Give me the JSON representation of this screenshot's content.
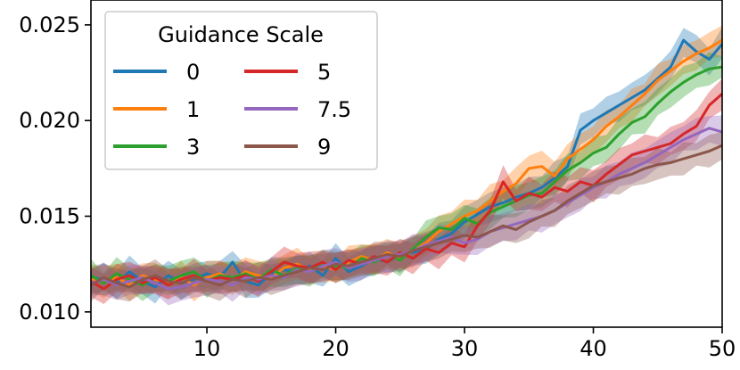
{
  "chart_data": {
    "type": "line",
    "x": [
      1,
      2,
      3,
      4,
      5,
      6,
      7,
      8,
      9,
      10,
      11,
      12,
      13,
      14,
      15,
      16,
      17,
      18,
      19,
      20,
      21,
      22,
      23,
      24,
      25,
      26,
      27,
      28,
      29,
      30,
      31,
      32,
      33,
      34,
      35,
      36,
      37,
      38,
      39,
      40,
      41,
      42,
      43,
      44,
      45,
      46,
      47,
      48,
      49,
      50
    ],
    "xlim": [
      1,
      50
    ],
    "ylim": [
      0.0092,
      0.0263
    ],
    "xticks": [
      10,
      20,
      30,
      40,
      50
    ],
    "yticks": [
      0.01,
      0.015,
      0.02,
      0.025
    ],
    "xtick_labels": [
      "10",
      "20",
      "30",
      "40",
      "50"
    ],
    "ytick_labels": [
      "0.010",
      "0.015",
      "0.020",
      "0.025"
    ],
    "legend": {
      "title": "Guidance Scale",
      "placement": "top-left",
      "columns": 2
    },
    "shaded_band_halfwidth": 0.0007,
    "series": [
      {
        "name": "0",
        "color": "#1f77b4",
        "values": [
          0.0118,
          0.0117,
          0.0115,
          0.0121,
          0.0116,
          0.0113,
          0.0119,
          0.0115,
          0.0117,
          0.012,
          0.0118,
          0.0126,
          0.0116,
          0.0114,
          0.012,
          0.0122,
          0.0121,
          0.0124,
          0.0119,
          0.0128,
          0.0121,
          0.0124,
          0.0128,
          0.0126,
          0.013,
          0.0131,
          0.0133,
          0.0138,
          0.0141,
          0.0147,
          0.0151,
          0.0155,
          0.0157,
          0.016,
          0.0162,
          0.0165,
          0.017,
          0.0176,
          0.0195,
          0.02,
          0.0204,
          0.0208,
          0.0212,
          0.0216,
          0.0222,
          0.0228,
          0.0242,
          0.0236,
          0.0232,
          0.024
        ]
      },
      {
        "name": "1",
        "color": "#ff7f0e",
        "values": [
          0.0117,
          0.0116,
          0.0118,
          0.0114,
          0.0119,
          0.0117,
          0.0115,
          0.0118,
          0.0114,
          0.0118,
          0.012,
          0.0117,
          0.0121,
          0.0119,
          0.0118,
          0.0123,
          0.0125,
          0.0122,
          0.0124,
          0.0122,
          0.0126,
          0.0129,
          0.0127,
          0.0131,
          0.0128,
          0.0132,
          0.0136,
          0.0142,
          0.0146,
          0.015,
          0.0153,
          0.0158,
          0.0163,
          0.0167,
          0.0175,
          0.0176,
          0.0171,
          0.018,
          0.0185,
          0.019,
          0.0197,
          0.0202,
          0.0208,
          0.0214,
          0.0221,
          0.0226,
          0.0231,
          0.0235,
          0.0238,
          0.0242
        ]
      },
      {
        "name": "3",
        "color": "#2ca02c",
        "values": [
          0.0119,
          0.0115,
          0.012,
          0.0117,
          0.0114,
          0.0118,
          0.0116,
          0.0119,
          0.0121,
          0.0116,
          0.0119,
          0.0118,
          0.012,
          0.0117,
          0.0122,
          0.0119,
          0.0123,
          0.0121,
          0.0125,
          0.0124,
          0.0123,
          0.0128,
          0.0126,
          0.013,
          0.0127,
          0.0133,
          0.0139,
          0.0144,
          0.0143,
          0.0149,
          0.0146,
          0.0152,
          0.0155,
          0.0158,
          0.0161,
          0.0162,
          0.0168,
          0.0174,
          0.0178,
          0.0183,
          0.0186,
          0.0193,
          0.0199,
          0.0202,
          0.0209,
          0.0215,
          0.022,
          0.0224,
          0.0227,
          0.0228
        ]
      },
      {
        "name": "5",
        "color": "#d62728",
        "values": [
          0.0116,
          0.0112,
          0.0117,
          0.0119,
          0.0115,
          0.0118,
          0.0114,
          0.0117,
          0.0119,
          0.0116,
          0.0118,
          0.0117,
          0.0119,
          0.0116,
          0.0121,
          0.0126,
          0.0124,
          0.0123,
          0.0126,
          0.0122,
          0.0127,
          0.0125,
          0.0129,
          0.0126,
          0.0131,
          0.0128,
          0.0133,
          0.0131,
          0.0136,
          0.0134,
          0.0145,
          0.0153,
          0.0168,
          0.0158,
          0.0162,
          0.016,
          0.0165,
          0.0163,
          0.0168,
          0.0166,
          0.0172,
          0.0177,
          0.0182,
          0.0184,
          0.0186,
          0.0188,
          0.0193,
          0.0197,
          0.0208,
          0.0214
        ]
      },
      {
        "name": "7.5",
        "color": "#9467bd",
        "values": [
          0.0115,
          0.0117,
          0.0114,
          0.0116,
          0.0118,
          0.0115,
          0.0112,
          0.0113,
          0.0115,
          0.0117,
          0.0116,
          0.0114,
          0.0118,
          0.0117,
          0.0119,
          0.0118,
          0.0122,
          0.0121,
          0.0124,
          0.0126,
          0.0123,
          0.0125,
          0.0127,
          0.0129,
          0.013,
          0.0132,
          0.0135,
          0.0137,
          0.0139,
          0.0136,
          0.0138,
          0.0142,
          0.0144,
          0.0146,
          0.0148,
          0.015,
          0.0153,
          0.0157,
          0.0161,
          0.0165,
          0.0168,
          0.0172,
          0.0175,
          0.0178,
          0.0182,
          0.0186,
          0.019,
          0.0193,
          0.0196,
          0.0194
        ]
      },
      {
        "name": "9",
        "color": "#8c564b",
        "values": [
          0.0114,
          0.0118,
          0.0115,
          0.0113,
          0.0117,
          0.0119,
          0.0116,
          0.0115,
          0.0118,
          0.0116,
          0.0114,
          0.0117,
          0.0116,
          0.0118,
          0.0117,
          0.0119,
          0.0121,
          0.0123,
          0.0122,
          0.0125,
          0.0124,
          0.0126,
          0.0128,
          0.013,
          0.0129,
          0.0132,
          0.0134,
          0.0136,
          0.0138,
          0.014,
          0.0139,
          0.0142,
          0.0145,
          0.0143,
          0.0147,
          0.015,
          0.0153,
          0.0158,
          0.0162,
          0.0166,
          0.0168,
          0.017,
          0.0172,
          0.0175,
          0.0177,
          0.0178,
          0.018,
          0.0182,
          0.0184,
          0.0187
        ]
      }
    ]
  }
}
